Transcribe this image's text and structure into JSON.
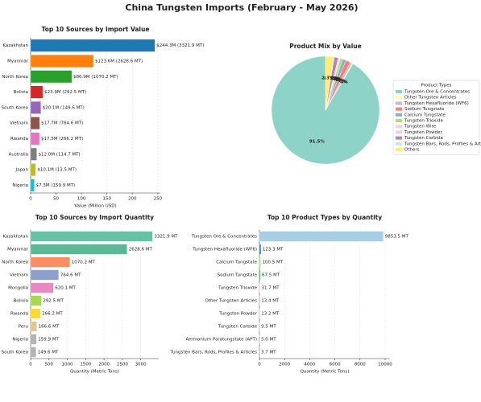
{
  "title": "China Tungsten Imports (February - May 2026)",
  "chart_data": [
    {
      "type": "barh",
      "title": "Top 10 Sources by Import Value",
      "x_label": "Value (Million USD)",
      "categories": [
        "Kazakhstan",
        "Myanmar",
        "North Korea",
        "Bolivia",
        "South Korea",
        "Vietnam",
        "Rwanda",
        "Australia",
        "Japan",
        "Nigeria"
      ],
      "values": [
        244.3,
        123.6,
        80.9,
        23.9,
        20.1,
        17.7,
        17.5,
        12.0,
        10.1,
        7.3
      ],
      "value_labels": [
        "$244.3M  (3321.9 MT)",
        "$123.6M  (2628.6 MT)",
        "$80.9M  (1070.2 MT)",
        "$23.9M  (292.5 MT)",
        "$20.1M  (149.6 MT)",
        "$17.7M  (764.6 MT)",
        "$17.5M  (266.2 MT)",
        "$12.0M  (114.7 MT)",
        "$10.1M  (13.5 MT)",
        "$7.3M  (159.9 MT)"
      ],
      "colors": [
        "#1f77b4",
        "#ff7f0e",
        "#2ca02c",
        "#d62728",
        "#9467bd",
        "#8c564b",
        "#e377c2",
        "#7f7f7f",
        "#bcbd22",
        "#17becf"
      ],
      "xlim": [
        0,
        255
      ],
      "xticks": [
        0,
        50,
        100,
        150,
        200,
        250
      ],
      "grid": true
    },
    {
      "type": "pie",
      "title": "Product Mix by Value",
      "legend_title": "Product Types",
      "legend": "right",
      "categories": [
        "Tungsten Ore & Concentrates",
        "Other Tungsten Articles",
        "Tungsten Hexafluoride (WF6)",
        "Sodium Tungstate",
        "Calcium Tungstate",
        "Tungsten Trioxide",
        "Tungsten Wire",
        "Tungsten Powder",
        "Tungsten Carbide",
        "Tungsten Bars, Rods, Profiles & Articles",
        "Others"
      ],
      "values": [
        91.5,
        0.3,
        0.6,
        1.4,
        1.0,
        0.8,
        0.2,
        0.4,
        1.2,
        0.3,
        2.3
      ],
      "value_labels": [
        "91.5%",
        "0.3%",
        "0.6%",
        "1.4%",
        "1.0%",
        "0.8%",
        "0.2%",
        "0.4%",
        "1.2%",
        "0.3%",
        "2.3%"
      ],
      "colors": [
        "#8dd3c7",
        "#ffffb3",
        "#bebada",
        "#fb8072",
        "#80b1d3",
        "#b3de69",
        "#fccde5",
        "#d9d9d9",
        "#bc80bd",
        "#ccebc5",
        "#ffed6f"
      ]
    },
    {
      "type": "barh",
      "title": "Top 10 Sources by Import Quantity",
      "x_label": "Quantity (Metric Tons)",
      "categories": [
        "Kazakhstan",
        "Myanmar",
        "North Korea",
        "Vietnam",
        "Mongolia",
        "Bolivia",
        "Rwanda",
        "Peru",
        "Nigeria",
        "South Korea"
      ],
      "values": [
        3321.9,
        2628.6,
        1070.2,
        764.6,
        620.1,
        292.5,
        266.2,
        166.6,
        159.9,
        149.6
      ],
      "value_labels": [
        "3321.9 MT",
        "2628.6 MT",
        "1070.2 MT",
        "764.6 MT",
        "620.1 MT",
        "292.5 MT",
        "266.2 MT",
        "166.6 MT",
        "159.9 MT",
        "149.6 MT"
      ],
      "colors": [
        "#66c2a5",
        "#5cb896",
        "#fc8d62",
        "#8da0cb",
        "#e78ac3",
        "#a6d854",
        "#ffd92f",
        "#e5c494",
        "#b3b3b3",
        "#b3b3b3"
      ],
      "xlim": [
        0,
        3490
      ],
      "xticks": [
        0,
        500,
        1000,
        1500,
        2000,
        2500,
        3000
      ],
      "grid": true
    },
    {
      "type": "barh",
      "title": "Top 10 Product Types by Quantity",
      "x_label": "Quantity (Metric Tons)",
      "categories": [
        "Tungsten Ore & Concentrates",
        "Tungsten Hexafluoride (WF6)",
        "Calcium Tungstate",
        "Sodium Tungstate",
        "Tungsten Trioxide",
        "Other Tungsten Articles",
        "Tungsten Powder",
        "Tungsten Carbide",
        "Ammonium Paratungstate (APT)",
        "Tungsten Bars, Rods, Profiles & Articles"
      ],
      "values": [
        9853.5,
        123.3,
        100.5,
        67.5,
        31.7,
        13.4,
        13.2,
        9.5,
        5.0,
        3.7
      ],
      "value_labels": [
        "9853.5 MT",
        "123.3 MT",
        "100.5 MT",
        "67.5 MT",
        "31.7 MT",
        "13.4 MT",
        "13.2 MT",
        "9.5 MT",
        "5.0 MT",
        "3.7 MT"
      ],
      "colors": [
        "#a6cee3",
        "#1f78b4",
        "#b2df8a",
        "#33a02c",
        "#fb9a99",
        "#e31a1c",
        "#fdbf6f",
        "#ff7f00",
        "#cab2d6",
        "#6a3d9a"
      ],
      "xlim": [
        0,
        10385
      ],
      "xticks": [
        0,
        2000,
        4000,
        6000,
        8000,
        10000
      ],
      "grid": true
    }
  ]
}
